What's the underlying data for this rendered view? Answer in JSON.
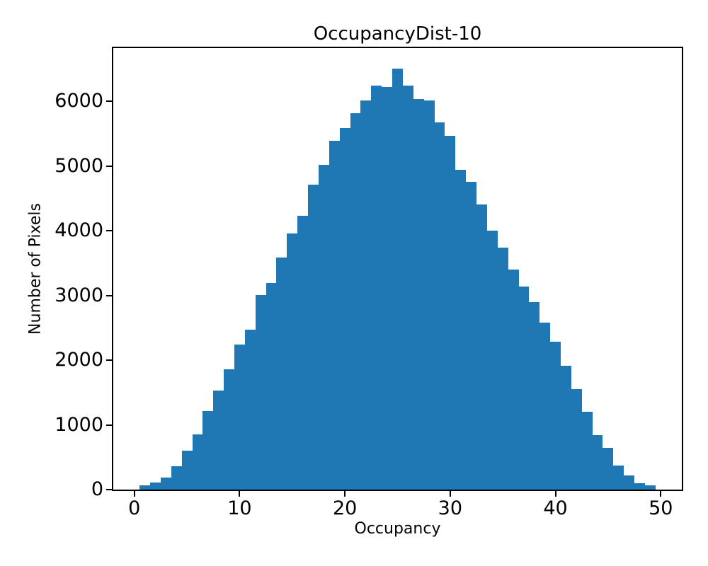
{
  "chart_data": {
    "type": "bar",
    "subtype": "histogram",
    "title": "OccupancyDist-10",
    "xlabel": "Occupancy",
    "ylabel": "Number of Pixels",
    "bar_color": "#1f77b4",
    "background_color": "#ffffff",
    "grid": false,
    "legend": null,
    "xlim": [
      -2,
      52
    ],
    "ylim": [
      0,
      6820
    ],
    "xticks": [
      0,
      10,
      20,
      30,
      40,
      50
    ],
    "yticks": [
      0,
      1000,
      2000,
      3000,
      4000,
      5000,
      6000
    ],
    "bin_width": 1,
    "bin_centers": [
      1,
      2,
      3,
      4,
      5,
      6,
      7,
      8,
      9,
      10,
      11,
      12,
      13,
      14,
      15,
      16,
      17,
      18,
      19,
      20,
      21,
      22,
      23,
      24,
      25,
      26,
      27,
      28,
      29,
      30,
      31,
      32,
      33,
      34,
      35,
      36,
      37,
      38,
      39,
      40,
      41,
      42,
      43,
      44,
      45,
      46,
      47,
      48,
      49
    ],
    "values": [
      65,
      110,
      185,
      360,
      600,
      850,
      1215,
      1530,
      1860,
      2245,
      2470,
      3010,
      3195,
      3585,
      3955,
      4230,
      4710,
      5020,
      5385,
      5580,
      5815,
      6015,
      6240,
      6220,
      6500,
      6240,
      6030,
      6010,
      5670,
      5465,
      4940,
      4755,
      4405,
      4000,
      3740,
      3400,
      3135,
      2900,
      2580,
      2280,
      1915,
      1550,
      1200,
      840,
      640,
      370,
      220,
      95,
      65
    ]
  }
}
